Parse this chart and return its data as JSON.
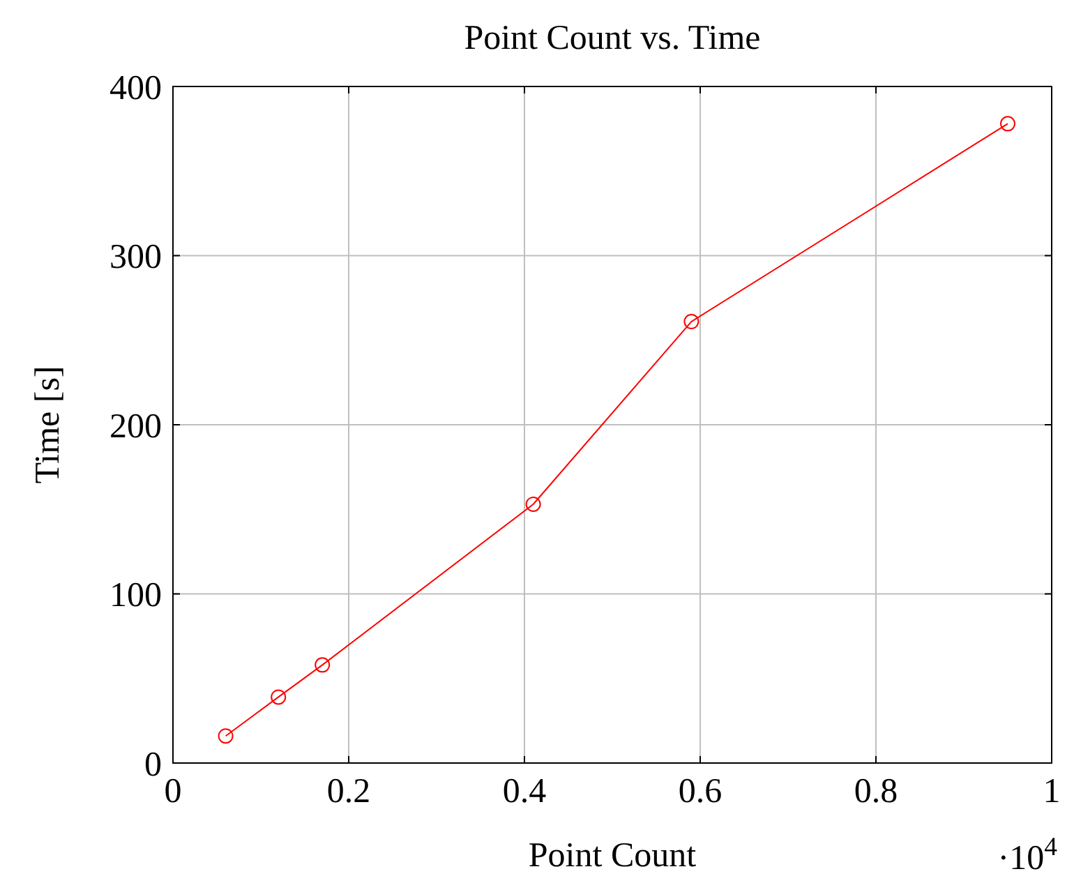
{
  "chart_data": {
    "type": "line",
    "title": "Point Count vs. Time",
    "xlabel": "Point Count",
    "ylabel": "Time [s]",
    "x": [
      0.06,
      0.12,
      0.17,
      0.41,
      0.59,
      0.95
    ],
    "series": [
      {
        "color": "#ff0000",
        "values": [
          16,
          39,
          58,
          153,
          261,
          378
        ]
      }
    ],
    "xlim": [
      0,
      1
    ],
    "xticks": [
      0,
      0.2,
      0.4,
      0.6,
      0.8,
      1
    ],
    "ylim": [
      0,
      400
    ],
    "yticks": [
      0,
      100,
      200,
      300,
      400
    ],
    "grid": true,
    "marker": "circle",
    "line_style": "solid",
    "annotations": [
      "·10$^{4}$"
    ]
  }
}
